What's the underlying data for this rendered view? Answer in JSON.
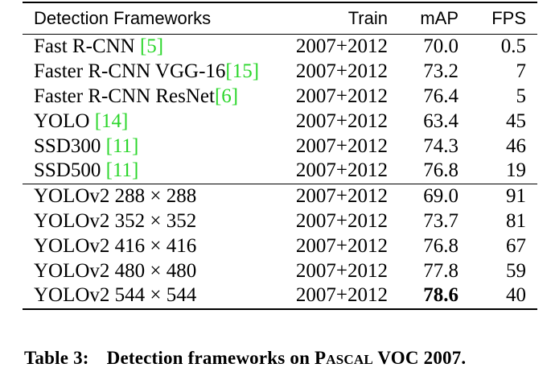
{
  "table": {
    "headers": {
      "name": "Detection Frameworks",
      "train": "Train",
      "map": "mAP",
      "fps": "FPS"
    },
    "rows": [
      {
        "name": "Fast R-CNN ",
        "cite": "[5]",
        "train": "2007+2012",
        "map": "70.0",
        "fps": "0.5",
        "bold_map": false
      },
      {
        "name": "Faster R-CNN VGG-16",
        "cite": "[15]",
        "train": "2007+2012",
        "map": "73.2",
        "fps": "7",
        "bold_map": false
      },
      {
        "name": "Faster R-CNN ResNet",
        "cite": "[6]",
        "train": "2007+2012",
        "map": "76.4",
        "fps": "5",
        "bold_map": false
      },
      {
        "name": "YOLO ",
        "cite": "[14]",
        "train": "2007+2012",
        "map": "63.4",
        "fps": "45",
        "bold_map": false
      },
      {
        "name": "SSD300 ",
        "cite": "[11]",
        "train": "2007+2012",
        "map": "74.3",
        "fps": "46",
        "bold_map": false
      },
      {
        "name": "SSD500 ",
        "cite": "[11]",
        "train": "2007+2012",
        "map": "76.8",
        "fps": "19",
        "bold_map": false
      },
      {
        "name": "YOLOv2 288 × 288",
        "cite": "",
        "train": "2007+2012",
        "map": "69.0",
        "fps": "91",
        "bold_map": false
      },
      {
        "name": "YOLOv2 352 × 352",
        "cite": "",
        "train": "2007+2012",
        "map": "73.7",
        "fps": "81",
        "bold_map": false
      },
      {
        "name": "YOLOv2 416 × 416",
        "cite": "",
        "train": "2007+2012",
        "map": "76.8",
        "fps": "67",
        "bold_map": false
      },
      {
        "name": "YOLOv2 480 × 480",
        "cite": "",
        "train": "2007+2012",
        "map": "77.8",
        "fps": "59",
        "bold_map": false
      },
      {
        "name": "YOLOv2 544 × 544",
        "cite": "",
        "train": "2007+2012",
        "map": "78.6",
        "fps": "40",
        "bold_map": true
      }
    ]
  },
  "caption": {
    "label": "Table 3:",
    "text_before": "Detection frameworks on ",
    "pascal_first": "P",
    "pascal_rest": "ASCAL",
    "text_after": " VOC 2007."
  },
  "colors": {
    "citation": "#2bd62b",
    "text": "#000000"
  }
}
